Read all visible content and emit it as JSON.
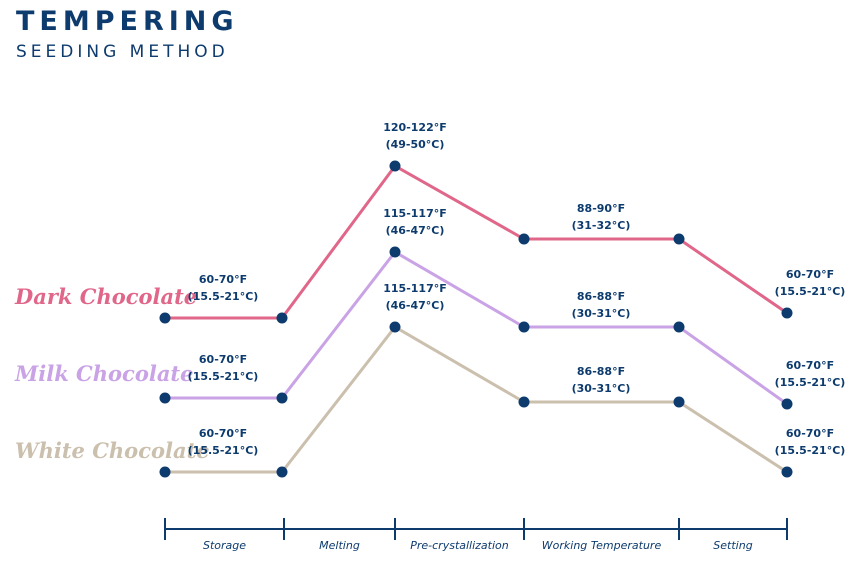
{
  "header": {
    "title": "TEMPERING",
    "subtitle": "SEEDING METHOD"
  },
  "colors": {
    "axis": "#0d3b6e",
    "point": "#0d3b6e",
    "dark": "#e0678a",
    "milk": "#c9a3e6",
    "white": "#cbbfad"
  },
  "chart_data": {
    "type": "line",
    "title": "TEMPERING",
    "subtitle": "SEEDING METHOD",
    "stages": [
      "Storage",
      "Melting",
      "Pre-crystallization",
      "Working Temperature",
      "Setting"
    ],
    "y_unit": "°F",
    "series": [
      {
        "name": "Dark Chocolate",
        "color": "#e0678a",
        "points": [
          {
            "y": 65,
            "label": [
              "60-70°F",
              "(15.5-21°C)"
            ],
            "show_label": true
          },
          {
            "y": 65,
            "label": null,
            "show_label": false
          },
          {
            "y": 121,
            "label": [
              "120-122°F",
              "(49-50°C)"
            ],
            "show_label": true
          },
          {
            "y": 89,
            "label": [
              "88-90°F",
              "(31-32°C)"
            ],
            "show_label": true
          },
          {
            "y": 89,
            "label": null,
            "show_label": false
          },
          {
            "y": 65,
            "label": [
              "60-70°F",
              "(15.5-21°C)"
            ],
            "show_label": true
          }
        ]
      },
      {
        "name": "Milk Chocolate",
        "color": "#c9a3e6",
        "points": [
          {
            "y": 65,
            "label": [
              "60-70°F",
              "(15.5-21°C)"
            ],
            "show_label": true
          },
          {
            "y": 65,
            "label": null,
            "show_label": false
          },
          {
            "y": 116,
            "label": [
              "115-117°F",
              "(46-47°C)"
            ],
            "show_label": true
          },
          {
            "y": 87,
            "label": [
              "86-88°F",
              "(30-31°C)"
            ],
            "show_label": true
          },
          {
            "y": 87,
            "label": null,
            "show_label": false
          },
          {
            "y": 65,
            "label": [
              "60-70°F",
              "(15.5-21°C)"
            ],
            "show_label": true
          }
        ]
      },
      {
        "name": "White Chocolate",
        "color": "#cbbfad",
        "points": [
          {
            "y": 65,
            "label": [
              "60-70°F",
              "(15.5-21°C)"
            ],
            "show_label": true
          },
          {
            "y": 65,
            "label": null,
            "show_label": false
          },
          {
            "y": 116,
            "label": [
              "115-117°F",
              "(46-47°C)"
            ],
            "show_label": true
          },
          {
            "y": 87,
            "label": [
              "86-88°F",
              "(30-31°C)"
            ],
            "show_label": true
          },
          {
            "y": 87,
            "label": null,
            "show_label": false
          },
          {
            "y": 65,
            "label": [
              "60-70°F",
              "(15.5-21°C)"
            ],
            "show_label": true
          }
        ]
      }
    ]
  }
}
